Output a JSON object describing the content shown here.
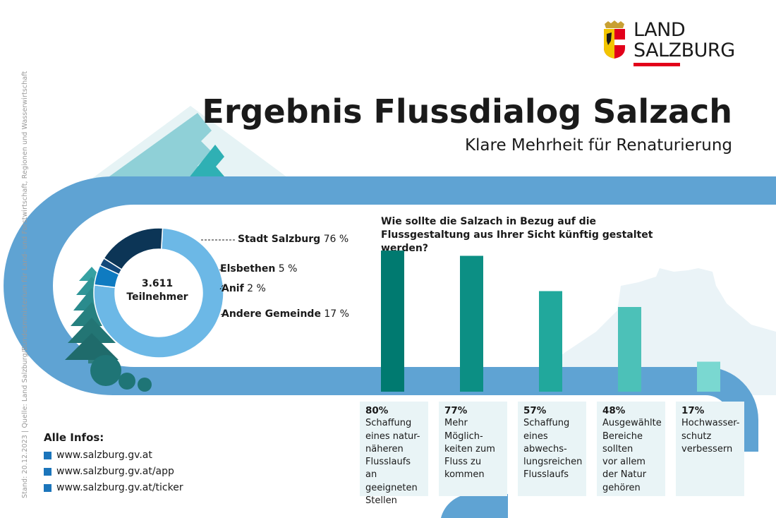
{
  "brand": {
    "line1": "LAND",
    "line2": "SALZBURG",
    "accent": "#e2001a"
  },
  "title": "Ergebnis Flussdialog Salzach",
  "subtitle": "Klare Mehrheit für Renaturierung",
  "side_note": "Stand: 20.12.2023  |  Quelle: Land Salzburg/Bundesministerium für Land- und Forstwirtschaft, Regionen und Wasserwirtschaft",
  "participants": {
    "count": "3.611",
    "label": "Teilnehmer"
  },
  "question": "Wie sollte die Salzach in Bezug auf die Flussgestaltung aus Ihrer Sicht künftig gestaltet werden?",
  "infos": {
    "title": "Alle Infos:",
    "links": [
      "www.salzburg.gv.at",
      "www.salzburg.gv.at/app",
      "www.salzburg.gv.at/ticker"
    ]
  },
  "chart_data": [
    {
      "type": "pie",
      "categories": [
        "Stadt Salzburg",
        "Elsbethen",
        "Anif",
        "Andere Gemeinde"
      ],
      "values": [
        76,
        5,
        2,
        17
      ],
      "value_labels": [
        "76 %",
        "5 %",
        "2 %",
        "17 %"
      ],
      "colors": [
        "#6cb8e6",
        "#0f7bc1",
        "#12487a",
        "#0c3556"
      ]
    },
    {
      "type": "bar",
      "categories": [
        "Schaffung eines naturnäheren Flusslaufs an geeigneten Stellen",
        "Mehr Möglichkeiten zum Fluss zu kommen",
        "Schaffung eines abwechslungsreichen Flusslaufs",
        "Ausgewählte Bereiche sollten vor allem der Natur gehören",
        "Hochwasserschutz verbessern"
      ],
      "card_texts": [
        "Schaffung\neines natur-\nnäheren\nFlusslaufs an\ngeeigneten\nStellen",
        "Mehr\nMöglich-\nkeiten zum\nFluss zu\nkommen",
        "Schaffung\neines\nabwechs-\nlungsreichen\nFlusslaufs",
        "Ausgewählte\nBereiche\nsollten\nvor allem\nder Natur\ngehören",
        "Hochwasser-\nschutz\nverbessern"
      ],
      "values": [
        80,
        77,
        57,
        48,
        17
      ],
      "value_labels": [
        "80%",
        "77%",
        "57%",
        "48%",
        "17%"
      ],
      "colors": [
        "#007a70",
        "#0c8f84",
        "#21a89c",
        "#4cc1b8",
        "#7ad8d1"
      ],
      "ylim": [
        0,
        80
      ]
    }
  ]
}
